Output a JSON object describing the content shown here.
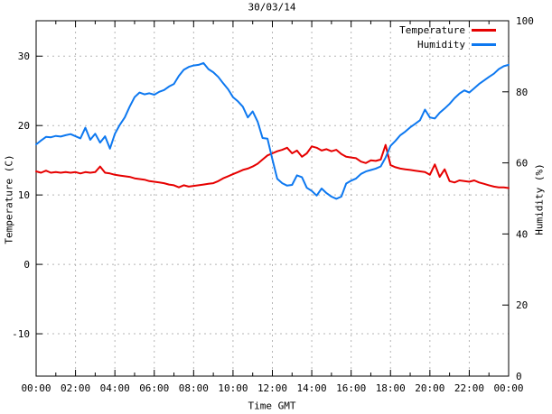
{
  "chart_data": {
    "type": "line",
    "title": "30/03/14",
    "xlabel": "Time GMT",
    "ylabel": "Temperature (C)",
    "y2label": "Humidity (%)",
    "x_hours_range": [
      0,
      24
    ],
    "x_major_ticks_hours": [
      0,
      2,
      4,
      6,
      8,
      10,
      12,
      14,
      16,
      18,
      20,
      22,
      24
    ],
    "x_tick_labels": [
      "00:00",
      "02:00",
      "04:00",
      "06:00",
      "08:00",
      "10:00",
      "12:00",
      "14:00",
      "16:00",
      "18:00",
      "20:00",
      "22:00",
      "00:00"
    ],
    "x_minor_tick_step_hours": 1,
    "y_left_ticks": [
      -10,
      0,
      10,
      20,
      30
    ],
    "y_left_range": [
      -16.1,
      35.1
    ],
    "y_right_ticks": [
      0,
      20,
      40,
      60,
      80,
      100
    ],
    "y_right_range": [
      0,
      100
    ],
    "grid": true,
    "legend_position": "top-right-inside",
    "colors": {
      "temperature": "#e60000",
      "humidity": "#0d78f0",
      "grid": "#b5b5b5",
      "axis": "#000000",
      "background": "#ffffff"
    },
    "series": [
      {
        "name": "Temperature",
        "axis": "left",
        "color_key": "temperature",
        "x_start": 0,
        "x_step": 0.25,
        "values": [
          13.4,
          13.2,
          13.5,
          13.2,
          13.3,
          13.2,
          13.3,
          13.2,
          13.3,
          13.1,
          13.3,
          13.2,
          13.3,
          14.1,
          13.2,
          13.1,
          12.9,
          12.8,
          12.7,
          12.6,
          12.4,
          12.3,
          12.2,
          12.0,
          11.9,
          11.8,
          11.7,
          11.5,
          11.4,
          11.1,
          11.4,
          11.2,
          11.3,
          11.4,
          11.5,
          11.6,
          11.7,
          12.0,
          12.4,
          12.7,
          13.0,
          13.3,
          13.6,
          13.8,
          14.1,
          14.5,
          15.1,
          15.7,
          16.0,
          16.3,
          16.5,
          16.8,
          16.0,
          16.4,
          15.5,
          16.0,
          17.0,
          16.8,
          16.4,
          16.6,
          16.3,
          16.5,
          15.9,
          15.5,
          15.4,
          15.3,
          14.8,
          14.6,
          15.0,
          14.9,
          15.1,
          17.2,
          14.3,
          14.0,
          13.8,
          13.7,
          13.6,
          13.5,
          13.4,
          13.3,
          12.9,
          14.4,
          12.6,
          13.7,
          12.0,
          11.8,
          12.1,
          12.0,
          11.9,
          12.1,
          11.8,
          11.6,
          11.4,
          11.2,
          11.1,
          11.1,
          11.0
        ]
      },
      {
        "name": "Humidity",
        "axis": "right",
        "color_key": "humidity",
        "x_start": 0,
        "x_step": 0.25,
        "values": [
          65.2,
          66.3,
          67.3,
          67.2,
          67.6,
          67.4,
          67.8,
          68.1,
          67.5,
          66.9,
          69.9,
          66.5,
          68.2,
          65.7,
          67.5,
          64.0,
          68.2,
          70.7,
          72.8,
          75.8,
          78.5,
          79.8,
          79.3,
          79.6,
          79.2,
          80.0,
          80.5,
          81.5,
          82.2,
          84.5,
          86.2,
          87.0,
          87.4,
          87.6,
          88.1,
          86.4,
          85.5,
          84.2,
          82.4,
          80.7,
          78.5,
          77.3,
          75.8,
          72.8,
          74.5,
          71.6,
          67.0,
          66.8,
          61.0,
          55.5,
          54.3,
          53.6,
          53.8,
          56.5,
          56.0,
          53.0,
          52.1,
          50.8,
          52.8,
          51.5,
          50.5,
          49.9,
          50.5,
          54.2,
          55.0,
          55.6,
          56.9,
          57.6,
          58.0,
          58.4,
          59.0,
          61.5,
          64.8,
          66.2,
          67.8,
          68.8,
          70.0,
          71.0,
          72.0,
          75.0,
          72.8,
          72.5,
          74.1,
          75.3,
          76.6,
          78.2,
          79.5,
          80.4,
          79.8,
          81.0,
          82.2,
          83.2,
          84.2,
          85.1,
          86.4,
          87.2,
          87.6
        ]
      }
    ]
  }
}
